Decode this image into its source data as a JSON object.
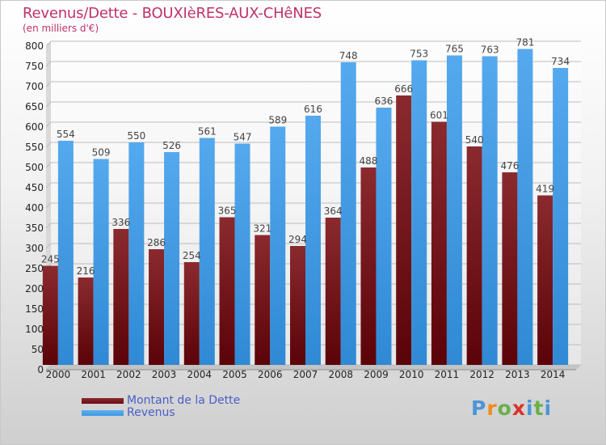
{
  "title": "Revenus/Dette - BOUXIèRES-AUX-CHêNES",
  "subtitle": "(en milliers d'€)",
  "brand": {
    "letters": [
      "P",
      "r",
      "o",
      "x",
      "i",
      "t",
      "i"
    ],
    "colors": [
      "#4f94d6",
      "#f08c1c",
      "#6ab04c",
      "#d9322a",
      "#4f94d6",
      "#6ab04c",
      "#4f94d6"
    ]
  },
  "legend": [
    {
      "label": "Montant de la Dette",
      "color": "#6b0f14"
    },
    {
      "label": "Revenus",
      "color": "#3d9ae2"
    }
  ],
  "chart_data": {
    "type": "bar",
    "title": "Revenus/Dette - BOUXIèRES-AUX-CHêNES",
    "subtitle": "(en milliers d'€)",
    "categories": [
      "2000",
      "2001",
      "2002",
      "2003",
      "2004",
      "2005",
      "2006",
      "2007",
      "2008",
      "2009",
      "2010",
      "2011",
      "2012",
      "2013",
      "2014"
    ],
    "series": [
      {
        "name": "Montant de la Dette",
        "color": "#6b0f14",
        "values": [
          245,
          216,
          336,
          286,
          254,
          365,
          321,
          294,
          364,
          488,
          666,
          601,
          540,
          476,
          419
        ]
      },
      {
        "name": "Revenus",
        "color": "#3d9ae2",
        "values": [
          554,
          509,
          550,
          526,
          561,
          547,
          589,
          616,
          748,
          636,
          753,
          765,
          763,
          781,
          734
        ]
      }
    ],
    "ylim": [
      0,
      800
    ],
    "yticks": [
      0,
      50,
      100,
      150,
      200,
      250,
      300,
      350,
      400,
      450,
      500,
      550,
      600,
      650,
      700,
      750,
      800
    ],
    "grid": true,
    "legend_position": "bottom-left"
  }
}
